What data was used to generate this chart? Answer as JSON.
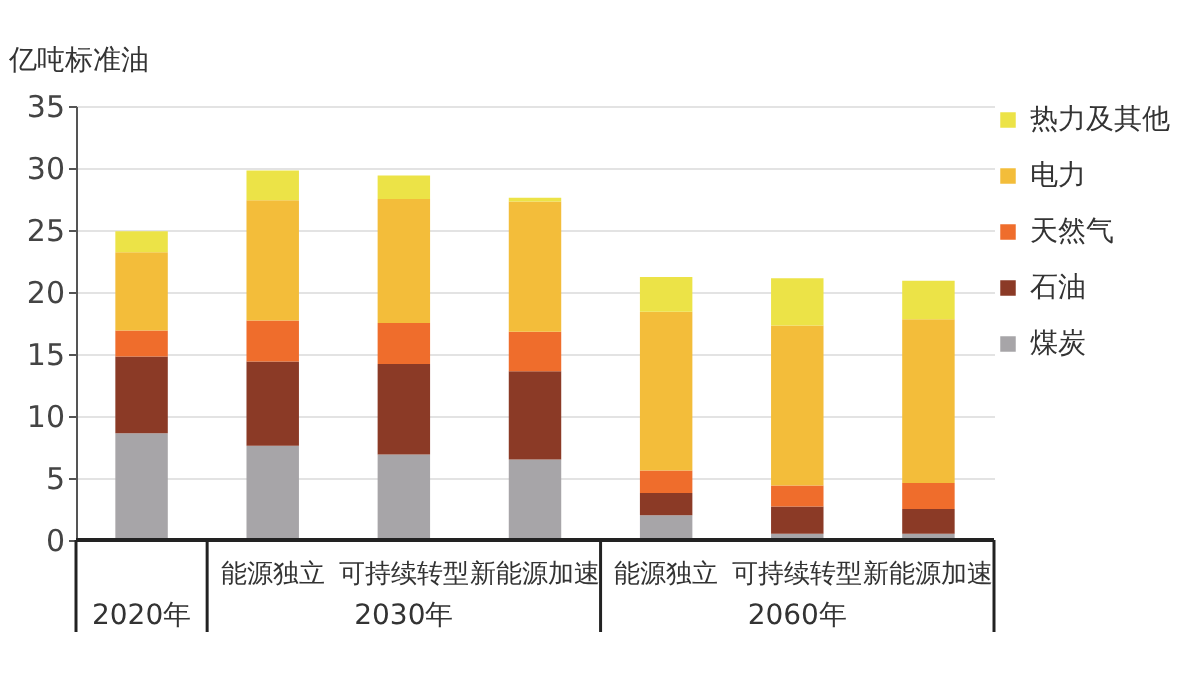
{
  "chart_data": {
    "type": "bar",
    "stacked": true,
    "ylabel": "亿吨标准油",
    "categories": [
      "2020年",
      "能源独立",
      "可持续转型",
      "新能源加速",
      "能源独立",
      "可持续转型",
      "新能源加速"
    ],
    "annotations": [
      "2030年",
      "2060年"
    ],
    "series": [
      {
        "name": "煤炭",
        "color": "#a7a5a8",
        "values": [
          8.6,
          7.6,
          6.9,
          6.5,
          2.0,
          0.5,
          0.5
        ]
      },
      {
        "name": "石油",
        "color": "#8b3a26",
        "values": [
          6.2,
          6.8,
          7.3,
          7.1,
          1.8,
          2.2,
          2.0
        ]
      },
      {
        "name": "天然气",
        "color": "#ef6d2c",
        "values": [
          2.1,
          3.3,
          3.3,
          3.2,
          1.8,
          1.7,
          2.1
        ]
      },
      {
        "name": "电力",
        "color": "#f3bd3a",
        "values": [
          6.3,
          9.7,
          10.0,
          10.5,
          12.8,
          12.9,
          13.2
        ]
      },
      {
        "name": "热力及其他",
        "color": "#ece347",
        "values": [
          1.7,
          2.4,
          1.9,
          0.3,
          2.8,
          3.8,
          3.1
        ]
      }
    ],
    "ylim": [
      0,
      35
    ],
    "yticks": [
      0,
      5,
      10,
      15,
      20,
      25,
      30,
      35
    ],
    "grid": "y",
    "legend": "right"
  }
}
